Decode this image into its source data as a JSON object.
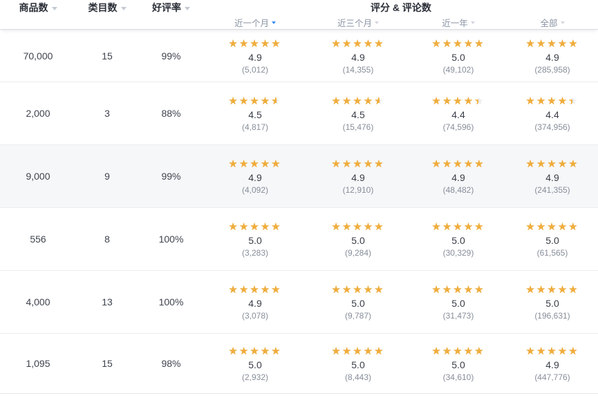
{
  "icons": {
    "star": "★",
    "sort_caret": "caret-down"
  },
  "colors": {
    "star_filled": "#f0ad3c",
    "star_empty": "#e9ecf1",
    "active_sort_caret": "#3d8df5",
    "header_text": "#2a2e37",
    "subheader_text": "#8a94a3",
    "count_text": "#868d99",
    "highlight_row_bg": "#f6f7f9"
  },
  "table": {
    "columns": [
      {
        "label": "商品数",
        "sortable": true
      },
      {
        "label": "类目数",
        "sortable": true
      },
      {
        "label": "好评率",
        "sortable": true
      }
    ],
    "rating_group": {
      "label": "评分 & 评论数",
      "sub_columns": [
        {
          "label": "近一个月",
          "sort_active": true
        },
        {
          "label": "近三个月",
          "sort_active": false
        },
        {
          "label": "近一年",
          "sort_active": false
        },
        {
          "label": "全部",
          "sort_active": false
        }
      ]
    },
    "rows": [
      {
        "products": "70,000",
        "categories": "15",
        "positive_rate": "99%",
        "highlighted": false,
        "ratings": [
          {
            "score": "4.9",
            "count": "(5,012)",
            "stars": 4.9
          },
          {
            "score": "4.9",
            "count": "(14,355)",
            "stars": 4.9
          },
          {
            "score": "5.0",
            "count": "(49,102)",
            "stars": 5.0
          },
          {
            "score": "4.9",
            "count": "(285,958)",
            "stars": 4.9
          }
        ]
      },
      {
        "products": "2,000",
        "categories": "3",
        "positive_rate": "88%",
        "highlighted": false,
        "ratings": [
          {
            "score": "4.5",
            "count": "(4,817)",
            "stars": 4.5
          },
          {
            "score": "4.5",
            "count": "(15,476)",
            "stars": 4.5
          },
          {
            "score": "4.4",
            "count": "(74,596)",
            "stars": 4.4
          },
          {
            "score": "4.4",
            "count": "(374,956)",
            "stars": 4.4
          }
        ]
      },
      {
        "products": "9,000",
        "categories": "9",
        "positive_rate": "99%",
        "highlighted": true,
        "ratings": [
          {
            "score": "4.9",
            "count": "(4,092)",
            "stars": 4.9
          },
          {
            "score": "4.9",
            "count": "(12,910)",
            "stars": 4.9
          },
          {
            "score": "4.9",
            "count": "(48,482)",
            "stars": 4.9
          },
          {
            "score": "4.9",
            "count": "(241,355)",
            "stars": 4.9
          }
        ]
      },
      {
        "products": "556",
        "categories": "8",
        "positive_rate": "100%",
        "highlighted": false,
        "ratings": [
          {
            "score": "5.0",
            "count": "(3,283)",
            "stars": 5.0
          },
          {
            "score": "5.0",
            "count": "(9,284)",
            "stars": 5.0
          },
          {
            "score": "5.0",
            "count": "(30,329)",
            "stars": 5.0
          },
          {
            "score": "5.0",
            "count": "(61,565)",
            "stars": 5.0
          }
        ]
      },
      {
        "products": "4,000",
        "categories": "13",
        "positive_rate": "100%",
        "highlighted": false,
        "ratings": [
          {
            "score": "4.9",
            "count": "(3,078)",
            "stars": 4.9
          },
          {
            "score": "5.0",
            "count": "(9,787)",
            "stars": 5.0
          },
          {
            "score": "5.0",
            "count": "(31,473)",
            "stars": 5.0
          },
          {
            "score": "5.0",
            "count": "(196,631)",
            "stars": 5.0
          }
        ]
      },
      {
        "products": "1,095",
        "categories": "15",
        "positive_rate": "98%",
        "highlighted": false,
        "ratings": [
          {
            "score": "5.0",
            "count": "(2,932)",
            "stars": 5.0
          },
          {
            "score": "5.0",
            "count": "(8,443)",
            "stars": 5.0
          },
          {
            "score": "5.0",
            "count": "(34,610)",
            "stars": 5.0
          },
          {
            "score": "4.9",
            "count": "(447,776)",
            "stars": 4.9
          }
        ]
      }
    ]
  }
}
